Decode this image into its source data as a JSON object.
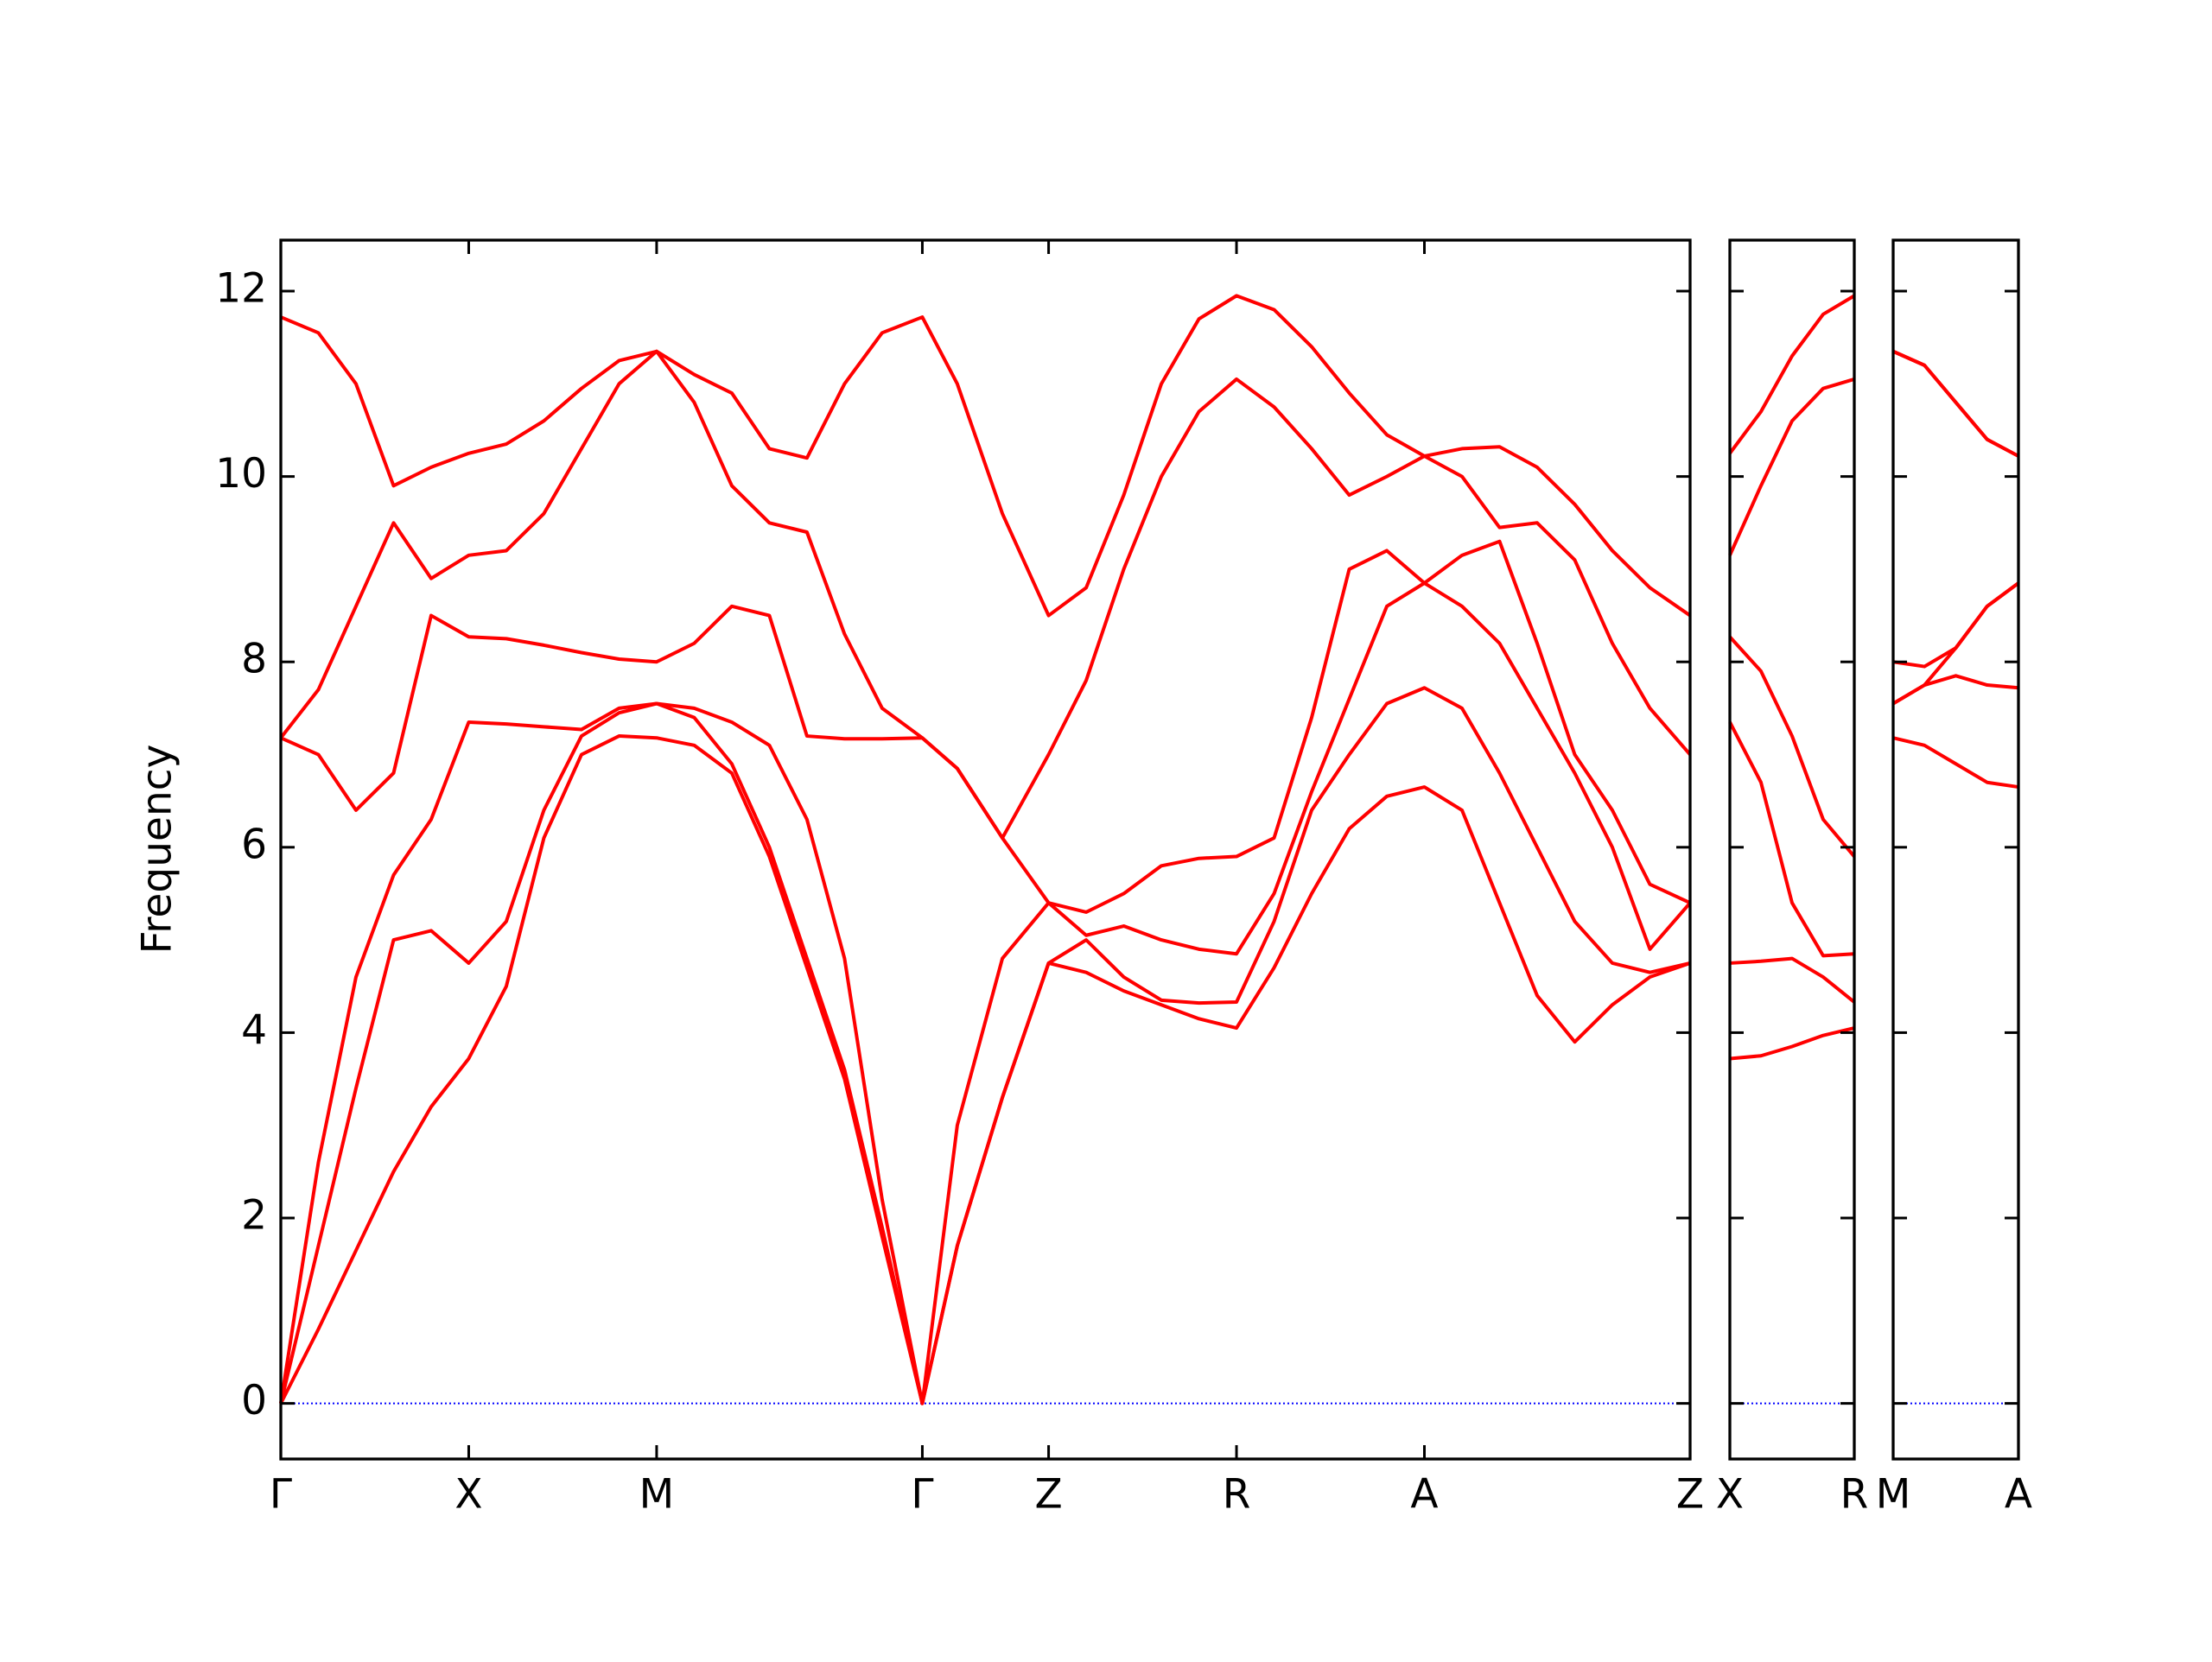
{
  "chart_data": [
    {
      "type": "line",
      "ylabel": "Frequency",
      "x": [
        0,
        0.1,
        0.2,
        0.3,
        0.4,
        0.5,
        0.6,
        0.7,
        0.8,
        0.9,
        1.0,
        1.1,
        1.2,
        1.3,
        1.4,
        1.5,
        1.6,
        1.707,
        1.8,
        1.92,
        2.043,
        2.143,
        2.243,
        2.343,
        2.443,
        2.543,
        2.643,
        2.743,
        2.843,
        2.943,
        3.043,
        3.143,
        3.243,
        3.343,
        3.443,
        3.543,
        3.643,
        3.75
      ],
      "series": [
        {
          "color": "#ff0000",
          "values": [
            0,
            0.8,
            1.65,
            2.5,
            3.2,
            3.72,
            4.5,
            6.1,
            7.0,
            7.2,
            7.18,
            7.1,
            6.8,
            5.9,
            4.7,
            3.5,
            1.8,
            0,
            1.7,
            3.3,
            4.75,
            4.65,
            4.45,
            4.3,
            4.15,
            4.05,
            4.7,
            5.5,
            6.2,
            6.55,
            6.65,
            6.4,
            5.4,
            4.4,
            3.9,
            4.3,
            4.6,
            4.75
          ]
        },
        {
          "color": "#ff0000",
          "values": [
            0,
            1.7,
            3.4,
            5.0,
            5.1,
            4.75,
            5.2,
            6.4,
            7.2,
            7.45,
            7.55,
            7.4,
            6.9,
            6.0,
            4.8,
            3.6,
            1.9,
            0,
            1.7,
            3.3,
            4.75,
            5.0,
            4.6,
            4.35,
            4.32,
            4.33,
            5.2,
            6.4,
            7.0,
            7.55,
            7.72,
            7.5,
            6.8,
            6.0,
            5.2,
            4.75,
            4.65,
            4.75
          ]
        },
        {
          "color": "#ff0000",
          "values": [
            0,
            2.6,
            4.6,
            5.7,
            6.3,
            7.35,
            7.33,
            7.3,
            7.27,
            7.5,
            7.55,
            7.5,
            7.35,
            7.1,
            6.3,
            4.8,
            2.2,
            0,
            3.0,
            4.8,
            5.4,
            5.05,
            5.15,
            5.0,
            4.9,
            4.85,
            5.5,
            6.6,
            7.6,
            8.6,
            8.85,
            8.6,
            8.2,
            7.5,
            6.8,
            6.0,
            4.9,
            5.4
          ]
        },
        {
          "color": "#ff0000",
          "values": [
            7.18,
            7.0,
            6.4,
            6.8,
            8.5,
            8.27,
            8.25,
            8.18,
            8.1,
            8.03,
            8.0,
            8.2,
            8.6,
            8.5,
            7.2,
            7.17,
            7.17,
            7.18,
            6.85,
            6.1,
            5.4,
            5.3,
            5.5,
            5.8,
            5.88,
            5.9,
            6.1,
            7.4,
            9.0,
            9.2,
            8.85,
            9.15,
            9.3,
            8.2,
            7.0,
            6.4,
            5.6,
            5.4
          ]
        },
        {
          "color": "#ff0000",
          "values": [
            7.18,
            7.7,
            8.6,
            9.5,
            8.9,
            9.15,
            9.2,
            9.6,
            10.3,
            11.0,
            11.35,
            10.8,
            9.9,
            9.5,
            9.4,
            8.3,
            7.5,
            7.18,
            6.85,
            6.1,
            7.0,
            7.8,
            9.0,
            10.0,
            10.7,
            11.05,
            10.75,
            10.3,
            9.8,
            10.0,
            10.22,
            10.0,
            9.45,
            9.5,
            9.1,
            8.2,
            7.5,
            7.0
          ]
        },
        {
          "color": "#ff0000",
          "values": [
            11.72,
            11.55,
            11.0,
            9.9,
            10.1,
            10.25,
            10.35,
            10.6,
            10.95,
            11.25,
            11.35,
            11.1,
            10.9,
            10.3,
            10.2,
            11.0,
            11.55,
            11.72,
            11.0,
            9.6,
            8.5,
            8.8,
            9.8,
            11.0,
            11.7,
            11.95,
            11.8,
            11.4,
            10.9,
            10.45,
            10.22,
            10.3,
            10.32,
            10.1,
            9.7,
            9.2,
            8.8,
            8.5
          ]
        }
      ],
      "xlim": [
        0,
        3.75
      ],
      "xticks": [
        {
          "value": 0,
          "label": "Γ"
        },
        {
          "value": 0.5,
          "label": "X"
        },
        {
          "value": 1.0,
          "label": "M"
        },
        {
          "value": 1.707,
          "label": "Γ"
        },
        {
          "value": 2.043,
          "label": "Z"
        },
        {
          "value": 2.543,
          "label": "R"
        },
        {
          "value": 3.043,
          "label": "A"
        },
        {
          "value": 3.75,
          "label": "Z"
        }
      ],
      "ylim": [
        -0.6,
        12.55
      ],
      "yticks": [
        0,
        2,
        4,
        6,
        8,
        10,
        12
      ],
      "hline": {
        "value": 0,
        "color": "#0000ff"
      }
    },
    {
      "type": "line",
      "x": [
        0,
        0.084,
        0.168,
        0.252,
        0.336
      ],
      "series": [
        {
          "color": "#ff0000",
          "values": [
            3.72,
            3.75,
            3.85,
            3.97,
            4.05
          ]
        },
        {
          "color": "#ff0000",
          "values": [
            4.75,
            4.77,
            4.8,
            4.6,
            4.33
          ]
        },
        {
          "color": "#ff0000",
          "values": [
            7.35,
            6.7,
            5.4,
            4.83,
            4.85
          ]
        },
        {
          "color": "#ff0000",
          "values": [
            8.27,
            7.9,
            7.2,
            6.3,
            5.9
          ]
        },
        {
          "color": "#ff0000",
          "values": [
            9.15,
            9.9,
            10.6,
            10.95,
            11.05
          ]
        },
        {
          "color": "#ff0000",
          "values": [
            10.25,
            10.7,
            11.3,
            11.75,
            11.95
          ]
        }
      ],
      "xlim": [
        0,
        0.336
      ],
      "xticks": [
        {
          "value": 0,
          "label": "X"
        },
        {
          "value": 0.336,
          "label": "R"
        }
      ]
    },
    {
      "type": "line",
      "x": [
        0,
        0.084,
        0.168,
        0.252,
        0.336
      ],
      "series": [
        {
          "color": "#ff0000",
          "values": [
            7.18,
            7.1,
            6.9,
            6.7,
            6.65
          ]
        },
        {
          "color": "#ff0000",
          "values": [
            7.55,
            7.75,
            7.85,
            7.75,
            7.72
          ]
        },
        {
          "color": "#ff0000",
          "values": [
            7.55,
            7.75,
            8.15,
            8.6,
            8.85
          ]
        },
        {
          "color": "#ff0000",
          "values": [
            8.0,
            7.95,
            8.15,
            8.6,
            8.85
          ]
        },
        {
          "color": "#ff0000",
          "values": [
            11.35,
            11.2,
            10.8,
            10.4,
            10.22
          ]
        },
        {
          "color": "#ff0000",
          "values": [
            11.35,
            11.2,
            10.8,
            10.4,
            10.22
          ]
        }
      ],
      "xlim": [
        0,
        0.336
      ],
      "xticks": [
        {
          "value": 0,
          "label": "M"
        },
        {
          "value": 0.336,
          "label": "A"
        }
      ]
    }
  ]
}
